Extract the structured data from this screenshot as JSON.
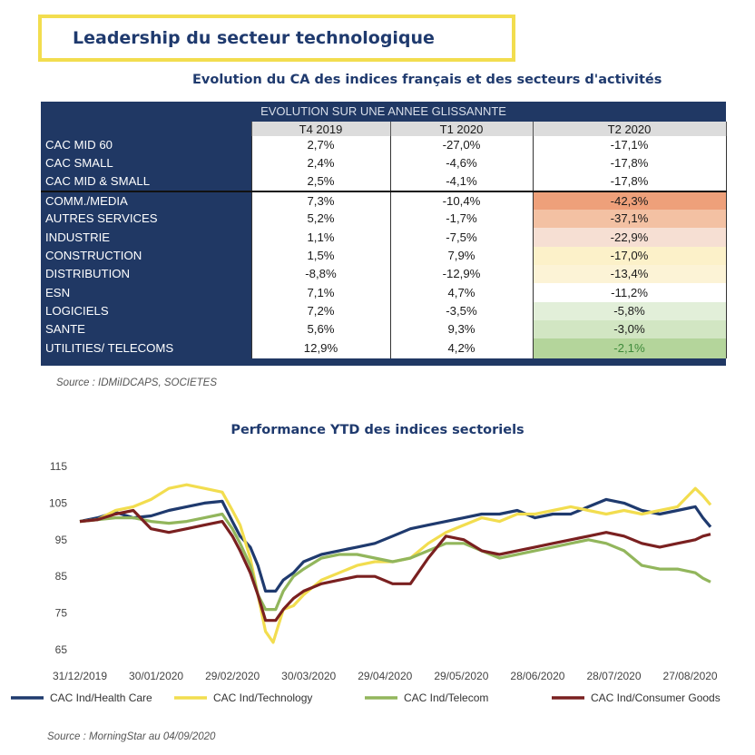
{
  "header": {
    "title": "Leadership du secteur technologique"
  },
  "table": {
    "title": "Evolution du CA des indices français et des secteurs d'activités",
    "group_header": "EVOLUTION SUR UNE ANNEE GLISSANNTE",
    "columns": [
      "T4 2019",
      "T1 2020",
      "T2 2020"
    ],
    "rows": [
      {
        "name": "CAC MID 60",
        "values": [
          "2,7%",
          "-27,0%",
          "-17,1%"
        ],
        "heat": "#ffffff",
        "text": "#1a1a1a"
      },
      {
        "name": "CAC SMALL",
        "values": [
          "2,4%",
          "-4,6%",
          "-17,8%"
        ],
        "heat": "#ffffff",
        "text": "#1a1a1a"
      },
      {
        "name": "CAC MID & SMALL",
        "values": [
          "2,5%",
          "-4,1%",
          "-17,8%"
        ],
        "heat": "#ffffff",
        "text": "#1a1a1a"
      },
      {
        "name": "COMM./MEDIA",
        "values": [
          "7,3%",
          "-10,4%",
          "-42,3%"
        ],
        "heat": "#eea07a",
        "text": "#1a1a1a"
      },
      {
        "name": "AUTRES SERVICES",
        "values": [
          "5,2%",
          "-1,7%",
          "-37,1%"
        ],
        "heat": "#f3c1a3",
        "text": "#1a1a1a"
      },
      {
        "name": "INDUSTRIE",
        "values": [
          "1,1%",
          "-7,5%",
          "-22,9%"
        ],
        "heat": "#f6dfd3",
        "text": "#1a1a1a"
      },
      {
        "name": "CONSTRUCTION",
        "values": [
          "1,5%",
          "7,9%",
          "-17,0%"
        ],
        "heat": "#fcf1c9",
        "text": "#1a1a1a"
      },
      {
        "name": "DISTRIBUTION",
        "values": [
          "-8,8%",
          "-12,9%",
          "-13,4%"
        ],
        "heat": "#fcf3d6",
        "text": "#1a1a1a"
      },
      {
        "name": "ESN",
        "values": [
          "7,1%",
          "4,7%",
          "-11,2%"
        ],
        "heat": "#ffffff",
        "text": "#1a1a1a"
      },
      {
        "name": "LOGICIELS",
        "values": [
          "7,2%",
          "-3,5%",
          "-5,8%"
        ],
        "heat": "#e2efd9",
        "text": "#1a1a1a"
      },
      {
        "name": "SANTE",
        "values": [
          "5,6%",
          "9,3%",
          "-3,0%"
        ],
        "heat": "#d2e6c3",
        "text": "#1a1a1a"
      },
      {
        "name": "UTILITIES/ TELECOMS",
        "values": [
          "12,9%",
          "4,2%",
          "-2,1%"
        ],
        "heat": "#b4d59b",
        "text": "#3e8a3a"
      }
    ],
    "source": "Source : IDMiIDCAPS, SOCIETES"
  },
  "chart_data": {
    "type": "line",
    "title": "Performance YTD des indices sectoriels",
    "x_labels": [
      "31/12/2019",
      "30/01/2020",
      "29/02/2020",
      "30/03/2020",
      "29/04/2020",
      "29/05/2020",
      "28/06/2020",
      "28/07/2020",
      "27/08/2020"
    ],
    "x_start": "31/12/2019",
    "x_end": "04/09/2020",
    "ylim": [
      65,
      115
    ],
    "yticks": [
      65,
      75,
      85,
      95,
      105,
      115
    ],
    "series": [
      {
        "name": "CAC Ind/Health Care",
        "color": "#1f3a6e",
        "points": [
          [
            0,
            100
          ],
          [
            7,
            101
          ],
          [
            14,
            102.5
          ],
          [
            21,
            101
          ],
          [
            28,
            101.5
          ],
          [
            35,
            103
          ],
          [
            42,
            104
          ],
          [
            49,
            105
          ],
          [
            56,
            105.5
          ],
          [
            60,
            100
          ],
          [
            63,
            96
          ],
          [
            67,
            93
          ],
          [
            70,
            88
          ],
          [
            73,
            81
          ],
          [
            77,
            81
          ],
          [
            80,
            84
          ],
          [
            84,
            86
          ],
          [
            88,
            89
          ],
          [
            95,
            91
          ],
          [
            102,
            92
          ],
          [
            109,
            93
          ],
          [
            116,
            94
          ],
          [
            123,
            96
          ],
          [
            130,
            98
          ],
          [
            137,
            99
          ],
          [
            144,
            100
          ],
          [
            151,
            101
          ],
          [
            158,
            102
          ],
          [
            165,
            102
          ],
          [
            172,
            103
          ],
          [
            179,
            101
          ],
          [
            186,
            102
          ],
          [
            193,
            102
          ],
          [
            200,
            104
          ],
          [
            207,
            106
          ],
          [
            214,
            105
          ],
          [
            221,
            103
          ],
          [
            228,
            102
          ],
          [
            235,
            103
          ],
          [
            242,
            104
          ],
          [
            245,
            101
          ],
          [
            248,
            98.5
          ]
        ]
      },
      {
        "name": "CAC Ind/Technology",
        "color": "#f2dd4f",
        "points": [
          [
            0,
            100
          ],
          [
            7,
            100.5
          ],
          [
            14,
            103
          ],
          [
            21,
            104
          ],
          [
            28,
            106
          ],
          [
            35,
            109
          ],
          [
            42,
            110
          ],
          [
            49,
            109
          ],
          [
            56,
            108
          ],
          [
            60,
            103
          ],
          [
            63,
            99
          ],
          [
            67,
            90
          ],
          [
            70,
            80
          ],
          [
            73,
            70
          ],
          [
            76,
            67
          ],
          [
            80,
            76
          ],
          [
            84,
            77
          ],
          [
            88,
            80
          ],
          [
            95,
            84
          ],
          [
            102,
            86
          ],
          [
            109,
            88
          ],
          [
            116,
            89
          ],
          [
            123,
            89
          ],
          [
            130,
            90
          ],
          [
            137,
            94
          ],
          [
            144,
            97
          ],
          [
            151,
            99
          ],
          [
            158,
            101
          ],
          [
            165,
            100
          ],
          [
            172,
            102
          ],
          [
            179,
            102
          ],
          [
            186,
            103
          ],
          [
            193,
            104
          ],
          [
            200,
            103
          ],
          [
            207,
            102
          ],
          [
            214,
            103
          ],
          [
            221,
            102
          ],
          [
            228,
            103
          ],
          [
            235,
            104
          ],
          [
            242,
            109
          ],
          [
            245,
            107
          ],
          [
            248,
            104.5
          ]
        ]
      },
      {
        "name": "CAC Ind/Telecom",
        "color": "#92b65c",
        "points": [
          [
            0,
            100
          ],
          [
            7,
            100.5
          ],
          [
            14,
            101
          ],
          [
            21,
            101
          ],
          [
            28,
            100
          ],
          [
            35,
            99.5
          ],
          [
            42,
            100
          ],
          [
            49,
            101
          ],
          [
            56,
            102
          ],
          [
            60,
            98
          ],
          [
            63,
            94
          ],
          [
            67,
            88
          ],
          [
            70,
            80
          ],
          [
            73,
            76
          ],
          [
            77,
            76
          ],
          [
            80,
            81
          ],
          [
            84,
            85
          ],
          [
            88,
            87
          ],
          [
            95,
            90
          ],
          [
            102,
            91
          ],
          [
            109,
            91
          ],
          [
            116,
            90
          ],
          [
            123,
            89
          ],
          [
            130,
            90
          ],
          [
            137,
            92
          ],
          [
            144,
            94
          ],
          [
            151,
            94
          ],
          [
            158,
            92
          ],
          [
            165,
            90
          ],
          [
            172,
            91
          ],
          [
            179,
            92
          ],
          [
            186,
            93
          ],
          [
            193,
            94
          ],
          [
            200,
            95
          ],
          [
            207,
            94
          ],
          [
            214,
            92
          ],
          [
            221,
            88
          ],
          [
            228,
            87
          ],
          [
            235,
            87
          ],
          [
            242,
            86
          ],
          [
            245,
            84.5
          ],
          [
            248,
            83.5
          ]
        ]
      },
      {
        "name": "CAC Ind/Consumer Goods",
        "color": "#7a2020",
        "points": [
          [
            0,
            100
          ],
          [
            7,
            100.5
          ],
          [
            14,
            102
          ],
          [
            21,
            103
          ],
          [
            28,
            98
          ],
          [
            35,
            97
          ],
          [
            42,
            98
          ],
          [
            49,
            99
          ],
          [
            56,
            100
          ],
          [
            60,
            96
          ],
          [
            63,
            92
          ],
          [
            67,
            86
          ],
          [
            70,
            80
          ],
          [
            73,
            73
          ],
          [
            77,
            73
          ],
          [
            80,
            76
          ],
          [
            84,
            79
          ],
          [
            88,
            81
          ],
          [
            95,
            83
          ],
          [
            102,
            84
          ],
          [
            109,
            85
          ],
          [
            116,
            85
          ],
          [
            123,
            83
          ],
          [
            130,
            83
          ],
          [
            137,
            90
          ],
          [
            144,
            96
          ],
          [
            151,
            95
          ],
          [
            158,
            92
          ],
          [
            165,
            91
          ],
          [
            172,
            92
          ],
          [
            179,
            93
          ],
          [
            186,
            94
          ],
          [
            193,
            95
          ],
          [
            200,
            96
          ],
          [
            207,
            97
          ],
          [
            214,
            96
          ],
          [
            221,
            94
          ],
          [
            228,
            93
          ],
          [
            235,
            94
          ],
          [
            242,
            95
          ],
          [
            245,
            96
          ],
          [
            248,
            96.5
          ]
        ]
      }
    ]
  },
  "source2": "Source : MorningStar au 04/09/2020"
}
